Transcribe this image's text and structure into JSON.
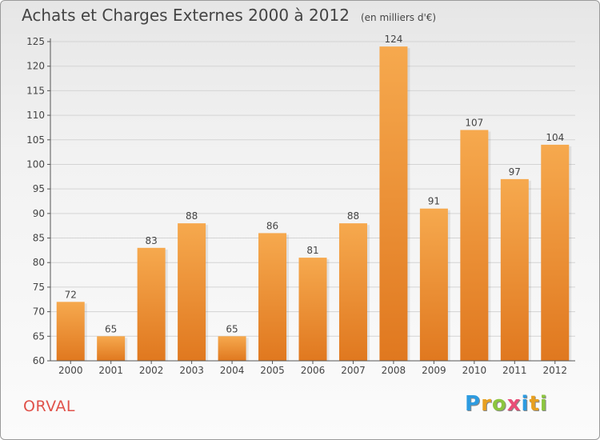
{
  "title": "Achats et Charges Externes 2000 à 2012",
  "unit": "(en milliers d'€)",
  "commune": "ORVAL",
  "logo": {
    "letters": [
      "P",
      "r",
      "o",
      "x",
      "i",
      "t",
      "i"
    ],
    "colors": [
      "#2d9be0",
      "#e8a020",
      "#8cc63f",
      "#e94e77",
      "#2d9be0",
      "#e8a020",
      "#8cc63f"
    ]
  },
  "colors": {
    "bar_light": "#f6a94e",
    "bar_dark": "#e0781f",
    "grid": "#d4d4d4",
    "axis": "#555555"
  },
  "chart_data": {
    "type": "bar",
    "title": "Achats et Charges Externes 2000 à 2012",
    "xlabel": "",
    "ylabel": "",
    "categories": [
      "2000",
      "2001",
      "2002",
      "2003",
      "2004",
      "2005",
      "2006",
      "2007",
      "2008",
      "2009",
      "2010",
      "2011",
      "2012"
    ],
    "values": [
      72,
      65,
      83,
      88,
      65,
      86,
      81,
      88,
      124,
      91,
      107,
      97,
      104
    ],
    "ylim": [
      60,
      125
    ],
    "yticks": [
      60,
      65,
      70,
      75,
      80,
      85,
      90,
      95,
      100,
      105,
      110,
      115,
      120,
      125
    ],
    "grid": true
  }
}
